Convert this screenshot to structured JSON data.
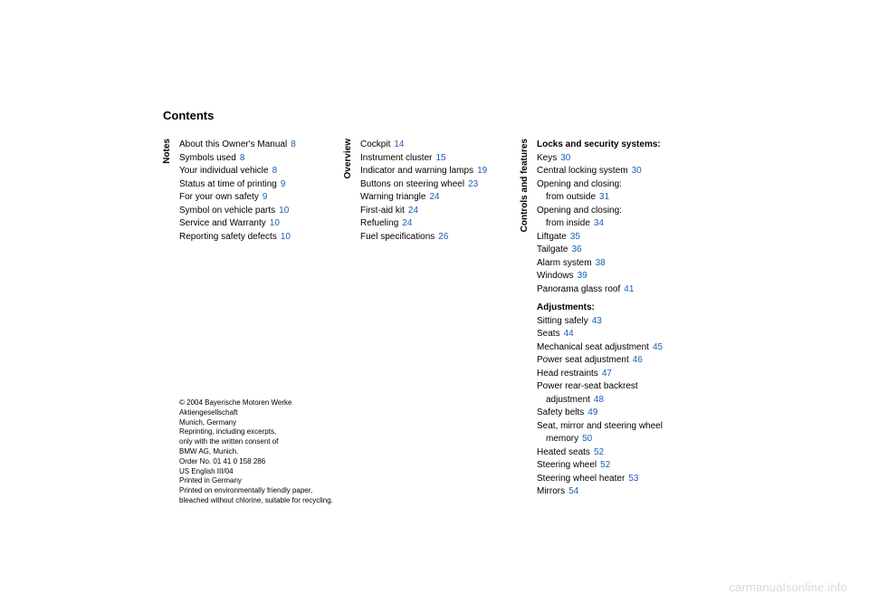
{
  "title": "Contents",
  "columns": [
    {
      "label": "Notes",
      "entries": [
        {
          "text": "About this Owner's Manual",
          "page": "8"
        },
        {
          "text": "Symbols used",
          "page": "8"
        },
        {
          "text": "Your individual vehicle",
          "page": "8"
        },
        {
          "text": "Status at time of printing",
          "page": "9"
        },
        {
          "text": "For your own safety",
          "page": "9"
        },
        {
          "text": "Symbol on vehicle parts",
          "page": "10"
        },
        {
          "text": "Service and Warranty",
          "page": "10"
        },
        {
          "text": "Reporting safety defects",
          "page": "10"
        }
      ]
    },
    {
      "label": "Overview",
      "entries": [
        {
          "text": "Cockpit",
          "page": "14"
        },
        {
          "text": "Instrument cluster",
          "page": "15"
        },
        {
          "text": "Indicator and warning lamps",
          "page": "19"
        },
        {
          "text": "Buttons on steering wheel",
          "page": "23"
        },
        {
          "text": "Warning triangle",
          "page": "24"
        },
        {
          "text": "First-aid kit",
          "page": "24"
        },
        {
          "text": "Refueling",
          "page": "24"
        },
        {
          "text": "Fuel specifications",
          "page": "26"
        }
      ]
    },
    {
      "label": "Controls and features",
      "groups": [
        {
          "heading": "Locks and security systems:",
          "entries": [
            {
              "text": "Keys",
              "page": "30"
            },
            {
              "text": "Central locking system",
              "page": "30"
            },
            {
              "text": "Opening and closing:",
              "sub": "from outside",
              "page": "31"
            },
            {
              "text": "Opening and closing:",
              "sub": "from inside",
              "page": "34"
            },
            {
              "text": "Liftgate",
              "page": "35"
            },
            {
              "text": "Tailgate",
              "page": "36"
            },
            {
              "text": "Alarm system",
              "page": "38"
            },
            {
              "text": "Windows",
              "page": "39"
            },
            {
              "text": "Panorama glass roof",
              "page": "41"
            }
          ]
        },
        {
          "heading": "Adjustments:",
          "entries": [
            {
              "text": "Sitting safely",
              "page": "43"
            },
            {
              "text": "Seats",
              "page": "44"
            },
            {
              "text": "Mechanical seat adjustment",
              "page": "45"
            },
            {
              "text": "Power seat adjustment",
              "page": "46"
            },
            {
              "text": "Head restraints",
              "page": "47"
            },
            {
              "text": "Power rear-seat backrest",
              "sub": "adjustment",
              "page": "48"
            },
            {
              "text": "Safety belts",
              "page": "49"
            },
            {
              "text": "Seat, mirror and steering wheel",
              "sub": "memory",
              "page": "50"
            },
            {
              "text": "Heated seats",
              "page": "52"
            },
            {
              "text": "Steering wheel",
              "page": "52"
            },
            {
              "text": "Steering wheel heater",
              "page": "53"
            },
            {
              "text": "Mirrors",
              "page": "54"
            }
          ]
        }
      ]
    }
  ],
  "copyright": [
    "© 2004 Bayerische Motoren Werke",
    "Aktiengesellschaft",
    "Munich, Germany",
    "Reprinting, including excerpts,",
    "only with the written consent of",
    "BMW AG, Munich.",
    "Order No. 01 41 0 158 286",
    "US English III/04",
    "Printed in Germany",
    "Printed on environmentally friendly paper,",
    "bleached without chlorine, suitable for recycling."
  ],
  "watermark": "carmanualsonline.info",
  "colors": {
    "page_link": "#1a5fb4",
    "watermark": "#d9d9d9",
    "text": "#000000",
    "background": "#ffffff"
  }
}
